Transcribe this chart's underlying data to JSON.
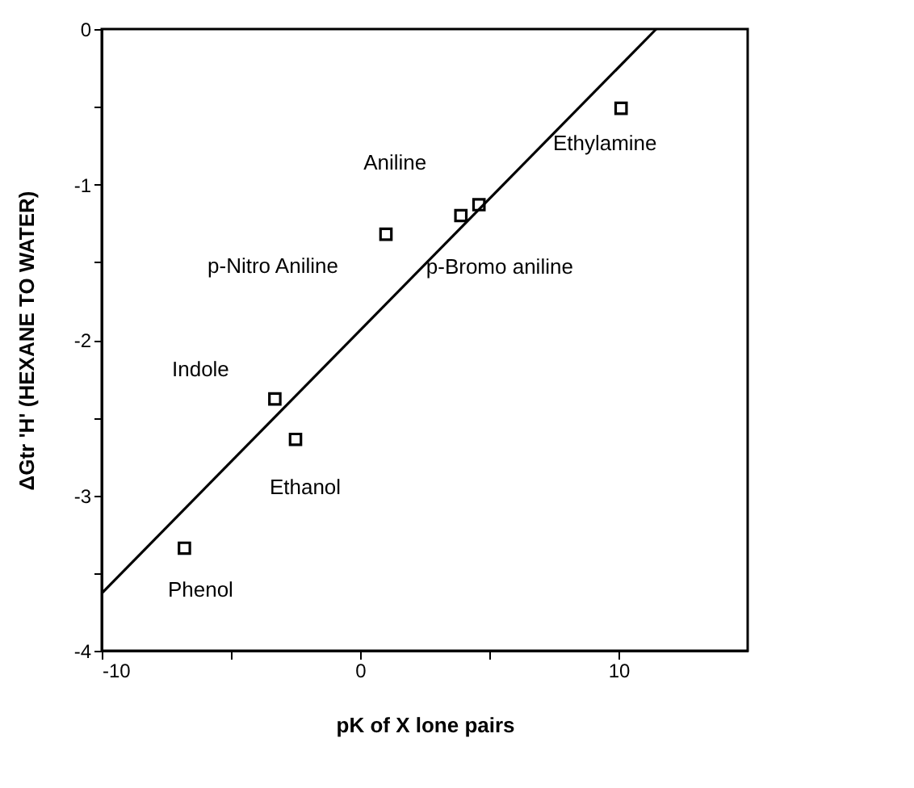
{
  "chart_data": {
    "type": "scatter",
    "xlabel": "pK of X lone pairs",
    "ylabel": "ΔGtr 'H' (HEXANE TO WATER)",
    "xlim": [
      -10,
      15
    ],
    "ylim": [
      -4,
      0
    ],
    "xticks": [
      -10,
      {
        "value": -5,
        "label": null
      },
      0,
      {
        "value": 5,
        "label": null
      },
      10
    ],
    "yticks": [
      -4,
      {
        "value": -3.5,
        "label": null
      },
      -3,
      {
        "value": -2.5,
        "label": null
      },
      -2,
      {
        "value": -1.5,
        "label": null
      },
      -1,
      {
        "value": -0.5,
        "label": null
      },
      0
    ],
    "grid": false,
    "series": [
      {
        "marker": "square",
        "color": "#000000",
        "x": [
          -6.8,
          -3.3,
          -2.5,
          1.0,
          3.9,
          4.6,
          10.1
        ],
        "values": [
          -3.34,
          -2.38,
          -2.64,
          -1.32,
          -1.2,
          -1.13,
          -0.51
        ]
      },
      {
        "type": "line",
        "color": "#000000",
        "line_style": "solid",
        "x": [
          -10,
          11.46
        ],
        "values": [
          -3.63,
          0
        ]
      }
    ],
    "annotations": [
      {
        "text": "Aniline",
        "x": 4.6,
        "y": -1.13
      },
      {
        "text": "p-Nitro Aniline",
        "x": 1.0,
        "y": -1.32
      },
      {
        "text": "p-Bromo aniline",
        "x": 3.9,
        "y": -1.2
      },
      {
        "text": "Ethylamine",
        "x": 10.1,
        "y": -0.51
      },
      {
        "text": "Indole",
        "x": -3.3,
        "y": -2.38
      },
      {
        "text": "Ethanol",
        "x": -2.5,
        "y": -2.64
      },
      {
        "text": "Phenol",
        "x": -6.8,
        "y": -3.34
      }
    ]
  }
}
